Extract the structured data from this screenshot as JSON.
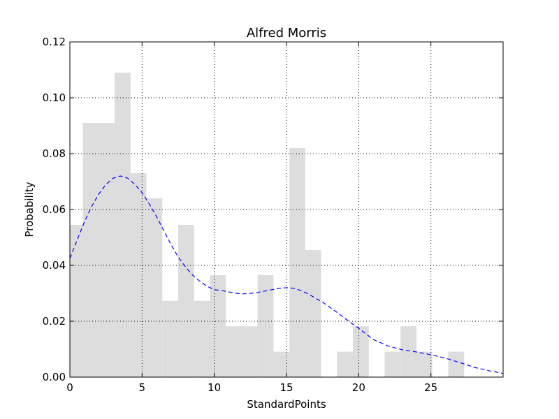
{
  "chart_data": {
    "type": "bar",
    "title": "Alfred Morris",
    "xlabel": "StandardPoints",
    "ylabel": "Probability",
    "xlim": [
      0,
      30
    ],
    "ylim": [
      0,
      0.12
    ],
    "xticks": [
      0,
      5,
      10,
      15,
      20,
      25
    ],
    "xtick_labels": [
      "0",
      "5",
      "10",
      "15",
      "20",
      "25"
    ],
    "yticks": [
      0.0,
      0.02,
      0.04,
      0.06,
      0.08,
      0.1,
      0.12
    ],
    "ytick_labels": [
      "0.00",
      "0.02",
      "0.04",
      "0.06",
      "0.08",
      "0.10",
      "0.12"
    ],
    "grid": true,
    "histogram": {
      "bin_edges": [
        0,
        0.9,
        2.0,
        3.1,
        4.2,
        5.3,
        6.4,
        7.5,
        8.6,
        9.7,
        10.8,
        11.9,
        13.0,
        14.1,
        15.2,
        16.3,
        17.4,
        18.5,
        19.6,
        20.7,
        21.8,
        22.9,
        24.0,
        25.1,
        26.2,
        27.3
      ],
      "values": [
        0.0545,
        0.091,
        0.091,
        0.109,
        0.073,
        0.064,
        0.0273,
        0.0545,
        0.0273,
        0.0365,
        0.0182,
        0.0182,
        0.0365,
        0.0091,
        0.082,
        0.0455,
        0,
        0.0091,
        0.0182,
        0,
        0.0091,
        0.0182,
        0.0091,
        0,
        0.0091
      ],
      "color": "#dddddd"
    },
    "kde": {
      "x": [
        0,
        0.5,
        1,
        1.5,
        2,
        2.5,
        3,
        3.5,
        4,
        4.5,
        5,
        5.5,
        6,
        6.5,
        7,
        7.5,
        8,
        8.5,
        9,
        9.5,
        10,
        10.5,
        11,
        11.5,
        12,
        12.5,
        13,
        13.5,
        14,
        14.5,
        15,
        15.5,
        16,
        16.5,
        17,
        17.5,
        18,
        18.5,
        19,
        19.5,
        20,
        21,
        22,
        23,
        24,
        25,
        26,
        27,
        28,
        29,
        30
      ],
      "y": [
        0.0425,
        0.049,
        0.0555,
        0.061,
        0.0655,
        0.069,
        0.0712,
        0.072,
        0.0712,
        0.069,
        0.066,
        0.062,
        0.0575,
        0.0525,
        0.0475,
        0.043,
        0.0395,
        0.0365,
        0.0343,
        0.0325,
        0.0313,
        0.031,
        0.0305,
        0.03,
        0.0298,
        0.03,
        0.0303,
        0.0308,
        0.0313,
        0.0318,
        0.032,
        0.0318,
        0.031,
        0.0298,
        0.0283,
        0.0268,
        0.025,
        0.0232,
        0.0212,
        0.0193,
        0.0175,
        0.0135,
        0.0112,
        0.0098,
        0.009,
        0.008,
        0.0068,
        0.0052,
        0.0035,
        0.0023,
        0.0013
      ],
      "color": "#0000ff",
      "style": "dashed"
    }
  }
}
